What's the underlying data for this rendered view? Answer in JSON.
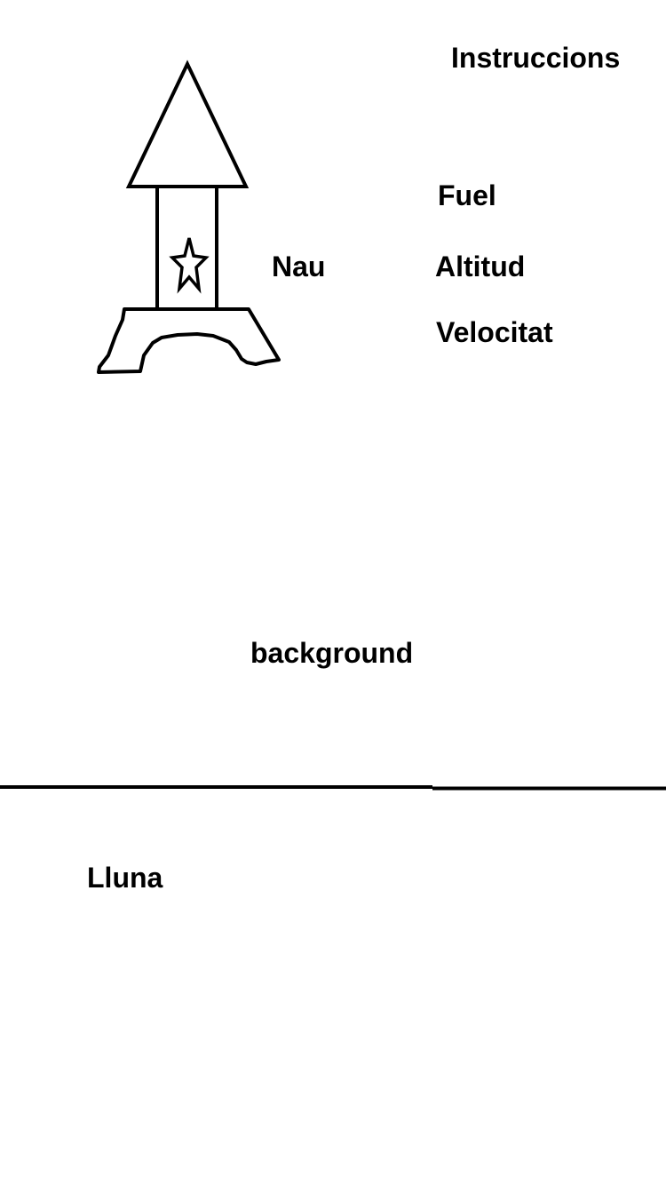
{
  "hud": {
    "instructions_label": "Instruccions",
    "fuel_label": "Fuel",
    "altitude_label": "Altitud",
    "velocity_label": "Velocitat"
  },
  "scene": {
    "ship_label": "Nau",
    "background_label": "background",
    "moon_label": "Lluna"
  },
  "colors": {
    "stroke": "#000000",
    "background": "#ffffff"
  },
  "icons": {
    "ship": "rocket-icon",
    "star": "star-icon"
  }
}
